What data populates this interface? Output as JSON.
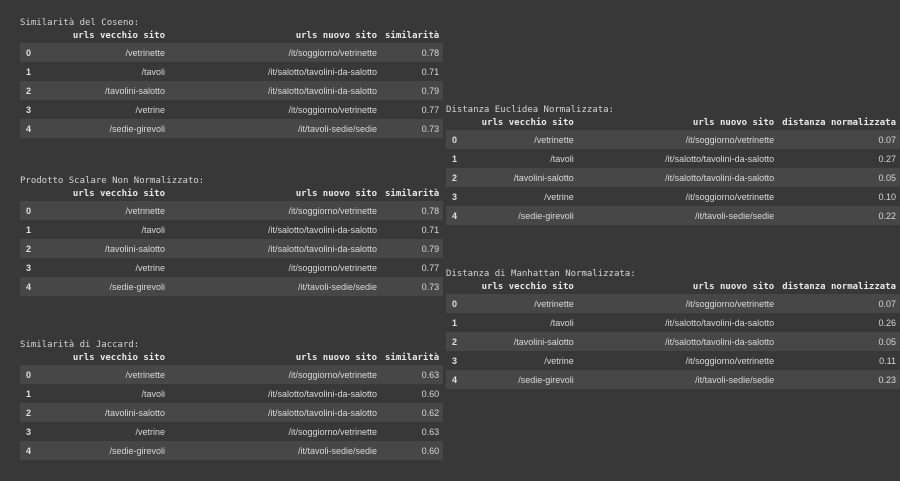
{
  "tables": [
    {
      "caption": "Similarità del Coseno:",
      "headers": [
        "",
        "urls vecchio sito",
        "urls nuovo sito",
        "similarità"
      ],
      "rows": [
        [
          "0",
          "/vetrinette",
          "/it/soggiorno/vetrinette",
          "0.78"
        ],
        [
          "1",
          "/tavoli",
          "/it/salotto/tavolini-da-salotto",
          "0.71"
        ],
        [
          "2",
          "/tavolini-salotto",
          "/it/salotto/tavolini-da-salotto",
          "0.79"
        ],
        [
          "3",
          "/vetrine",
          "/it/soggiorno/vetrinette",
          "0.77"
        ],
        [
          "4",
          "/sedie-girevoli",
          "/it/tavoli-sedie/sedie",
          "0.73"
        ]
      ]
    },
    {
      "caption": "Prodotto Scalare Non Normalizzato:",
      "headers": [
        "",
        "urls vecchio sito",
        "urls nuovo sito",
        "similarità"
      ],
      "rows": [
        [
          "0",
          "/vetrinette",
          "/it/soggiorno/vetrinette",
          "0.78"
        ],
        [
          "1",
          "/tavoli",
          "/it/salotto/tavolini-da-salotto",
          "0.71"
        ],
        [
          "2",
          "/tavolini-salotto",
          "/it/salotto/tavolini-da-salotto",
          "0.79"
        ],
        [
          "3",
          "/vetrine",
          "/it/soggiorno/vetrinette",
          "0.77"
        ],
        [
          "4",
          "/sedie-girevoli",
          "/it/tavoli-sedie/sedie",
          "0.73"
        ]
      ]
    },
    {
      "caption": "Similarità di Jaccard:",
      "headers": [
        "",
        "urls vecchio sito",
        "urls nuovo sito",
        "similarità"
      ],
      "rows": [
        [
          "0",
          "/vetrinette",
          "/it/soggiorno/vetrinette",
          "0.63"
        ],
        [
          "1",
          "/tavoli",
          "/it/salotto/tavolini-da-salotto",
          "0.60"
        ],
        [
          "2",
          "/tavolini-salotto",
          "/it/salotto/tavolini-da-salotto",
          "0.62"
        ],
        [
          "3",
          "/vetrine",
          "/it/soggiorno/vetrinette",
          "0.63"
        ],
        [
          "4",
          "/sedie-girevoli",
          "/it/tavoli-sedie/sedie",
          "0.60"
        ]
      ]
    },
    {
      "caption": "Distanza Euclidea Normalizzata:",
      "headers": [
        "",
        "urls vecchio sito",
        "urls nuovo sito",
        "distanza normalizzata"
      ],
      "rows": [
        [
          "0",
          "/vetrinette",
          "/it/soggiorno/vetrinette",
          "0.07"
        ],
        [
          "1",
          "/tavoli",
          "/it/salotto/tavolini-da-salotto",
          "0.27"
        ],
        [
          "2",
          "/tavolini-salotto",
          "/it/salotto/tavolini-da-salotto",
          "0.05"
        ],
        [
          "3",
          "/vetrine",
          "/it/soggiorno/vetrinette",
          "0.10"
        ],
        [
          "4",
          "/sedie-girevoli",
          "/it/tavoli-sedie/sedie",
          "0.22"
        ]
      ]
    },
    {
      "caption": "Distanza di Manhattan Normalizzata:",
      "headers": [
        "",
        "urls vecchio sito",
        "urls nuovo sito",
        "distanza normalizzata"
      ],
      "rows": [
        [
          "0",
          "/vetrinette",
          "/it/soggiorno/vetrinette",
          "0.07"
        ],
        [
          "1",
          "/tavoli",
          "/it/salotto/tavolini-da-salotto",
          "0.26"
        ],
        [
          "2",
          "/tavolini-salotto",
          "/it/salotto/tavolini-da-salotto",
          "0.05"
        ],
        [
          "3",
          "/vetrine",
          "/it/soggiorno/vetrinette",
          "0.11"
        ],
        [
          "4",
          "/sedie-girevoli",
          "/it/tavoli-sedie/sedie",
          "0.23"
        ]
      ]
    }
  ]
}
